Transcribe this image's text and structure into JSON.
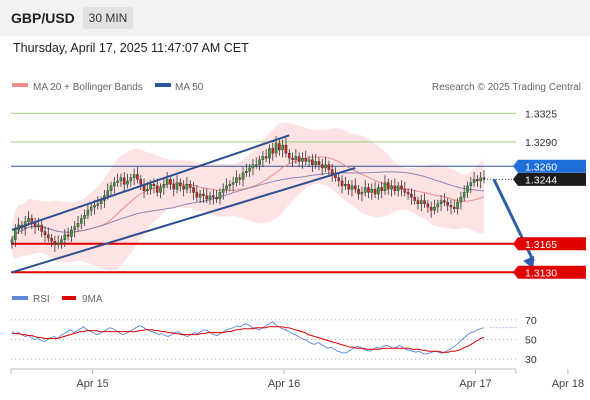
{
  "header": {
    "pair": "GBP/USD",
    "timeframe": "30 MIN"
  },
  "datetime": "Thursday, April 17, 2025 11:47:07 AM CET",
  "colors": {
    "ma20": "#f08c8c",
    "ma50": "#2e56a0",
    "support": "#e00000",
    "resistance": "#9cd17c",
    "rsi": "#5b86d9",
    "rsi_ma": "#e00000",
    "arrow": "#2e5ea8",
    "band": "#fde3e3"
  },
  "chart_data": [
    {
      "type": "candlestick",
      "legend": [
        {
          "name": "MA 20 + Bollinger Bands",
          "color": "#f08c8c"
        },
        {
          "name": "MA 50",
          "color": "#2e56a0"
        }
      ],
      "credit": "Research © 2025 Trading Central",
      "x_ticks": [
        "Apr 15",
        "Apr 16",
        "Apr 17",
        "Apr 18"
      ],
      "x_tick_index": [
        12,
        70,
        128,
        156
      ],
      "ylim": [
        1.3123,
        1.3345
      ],
      "levels": [
        {
          "label": "1.3325",
          "value": 1.3325,
          "kind": "resistance"
        },
        {
          "label": "1.3290",
          "value": 1.329,
          "kind": "resistance"
        },
        {
          "label": "1.3260",
          "value": 1.326,
          "kind": "pivot"
        },
        {
          "label": "1.3244",
          "value": 1.3244,
          "kind": "last"
        },
        {
          "label": "1.3165",
          "value": 1.3165,
          "kind": "support"
        },
        {
          "label": "1.3130",
          "value": 1.313,
          "kind": "support"
        }
      ],
      "close": [
        1.317,
        1.3182,
        1.3188,
        1.3184,
        1.3192,
        1.3196,
        1.319,
        1.3186,
        1.3188,
        1.318,
        1.3176,
        1.3172,
        1.3168,
        1.3164,
        1.3166,
        1.317,
        1.3176,
        1.3174,
        1.3182,
        1.3186,
        1.319,
        1.3196,
        1.32,
        1.3206,
        1.321,
        1.3212,
        1.3214,
        1.3218,
        1.3224,
        1.323,
        1.3236,
        1.324,
        1.3242,
        1.3246,
        1.3238,
        1.3242,
        1.3246,
        1.325,
        1.3244,
        1.3238,
        1.323,
        1.3232,
        1.3238,
        1.3236,
        1.3228,
        1.3234,
        1.3238,
        1.3244,
        1.3238,
        1.3232,
        1.324,
        1.3236,
        1.3232,
        1.3238,
        1.3234,
        1.3228,
        1.3222,
        1.3226,
        1.3224,
        1.322,
        1.3224,
        1.3222,
        1.322,
        1.3228,
        1.3232,
        1.3236,
        1.3238,
        1.324,
        1.3246,
        1.3244,
        1.3252,
        1.3254,
        1.3258,
        1.3262,
        1.3262,
        1.3268,
        1.3272,
        1.327,
        1.3282,
        1.3276,
        1.3288,
        1.328,
        1.3286,
        1.3276,
        1.327,
        1.3268,
        1.3272,
        1.3266,
        1.327,
        1.3266,
        1.3268,
        1.3262,
        1.3266,
        1.3262,
        1.3258,
        1.3262,
        1.3256,
        1.325,
        1.3246,
        1.3242,
        1.3236,
        1.3238,
        1.3232,
        1.3236,
        1.3232,
        1.3226,
        1.3228,
        1.3234,
        1.3228,
        1.3232,
        1.3226,
        1.3234,
        1.323,
        1.324,
        1.3232,
        1.3236,
        1.323,
        1.3236,
        1.3232,
        1.3228,
        1.3226,
        1.3222,
        1.3218,
        1.3214,
        1.3218,
        1.3214,
        1.321,
        1.3206,
        1.321,
        1.3214,
        1.3218,
        1.3216,
        1.3212,
        1.321,
        1.3208,
        1.3216,
        1.3222,
        1.3228,
        1.3236,
        1.324,
        1.3244,
        1.3242,
        1.3246,
        1.3244
      ],
      "arrow": {
        "from": 1.3244,
        "to": 1.313,
        "start_index": 146,
        "end_index": 158
      },
      "channel": [
        {
          "i0": 0,
          "v0": 1.313,
          "i1": 104,
          "v1": 1.3258
        },
        {
          "i0": 0,
          "v0": 1.3182,
          "i1": 84,
          "v1": 1.3298
        }
      ]
    },
    {
      "type": "line",
      "legend": [
        {
          "name": "RSI",
          "color": "#5b86d9"
        },
        {
          "name": "9MA",
          "color": "#e00000"
        }
      ],
      "ylim": [
        25,
        78
      ],
      "y_ticks": [
        70,
        50,
        30
      ],
      "rsi": [
        58,
        56,
        57,
        55,
        53,
        54,
        52,
        50,
        51,
        49,
        48,
        50,
        52,
        53,
        51,
        54,
        56,
        58,
        60,
        57,
        59,
        61,
        63,
        60,
        58,
        57,
        55,
        56,
        58,
        60,
        62,
        61,
        59,
        57,
        55,
        56,
        58,
        60,
        62,
        64,
        63,
        61,
        59,
        58,
        57,
        55,
        56,
        54,
        53,
        55,
        57,
        58,
        56,
        54,
        53,
        55,
        57,
        56,
        58,
        60,
        59,
        57,
        55,
        54,
        56,
        58,
        60,
        61,
        62,
        64,
        63,
        65,
        66,
        64,
        62,
        61,
        60,
        62,
        64,
        66,
        68,
        65,
        63,
        61,
        60,
        58,
        56,
        55,
        53,
        51,
        50,
        48,
        46,
        45,
        47,
        45,
        43,
        41,
        42,
        40,
        38,
        37,
        36,
        37,
        39,
        41,
        43,
        42,
        40,
        39,
        38,
        40,
        42,
        41,
        43,
        44,
        43,
        41,
        42,
        44,
        42,
        40,
        39,
        38,
        37,
        38,
        36,
        35,
        36,
        37,
        38,
        37,
        36,
        37,
        39,
        41,
        43,
        46,
        49,
        52,
        55,
        57,
        58,
        60,
        61,
        62
      ],
      "rsi_ma": [
        56,
        56,
        56,
        55,
        55,
        54,
        54,
        53,
        52,
        52,
        51,
        51,
        51,
        51,
        51,
        52,
        53,
        54,
        55,
        56,
        57,
        58,
        58,
        59,
        59,
        59,
        59,
        58,
        58,
        58,
        58,
        58,
        58,
        58,
        58,
        58,
        58,
        58,
        58,
        59,
        59,
        60,
        60,
        60,
        59,
        59,
        58,
        58,
        57,
        57,
        56,
        56,
        55,
        55,
        55,
        55,
        55,
        55,
        56,
        56,
        57,
        57,
        57,
        57,
        57,
        57,
        58,
        58,
        59,
        60,
        60,
        61,
        61,
        61,
        61,
        62,
        62,
        62,
        62,
        63,
        63,
        63,
        63,
        63,
        62,
        62,
        61,
        60,
        59,
        58,
        57,
        55,
        54,
        53,
        52,
        51,
        50,
        49,
        48,
        47,
        46,
        45,
        44,
        43,
        42,
        42,
        41,
        41,
        41,
        40,
        40,
        40,
        40,
        40,
        41,
        41,
        41,
        41,
        41,
        41,
        41,
        41,
        41,
        40,
        40,
        40,
        39,
        39,
        38,
        38,
        38,
        38,
        37,
        37,
        37,
        38,
        38,
        39,
        40,
        42,
        43,
        45,
        47,
        49,
        51,
        52
      ]
    }
  ]
}
